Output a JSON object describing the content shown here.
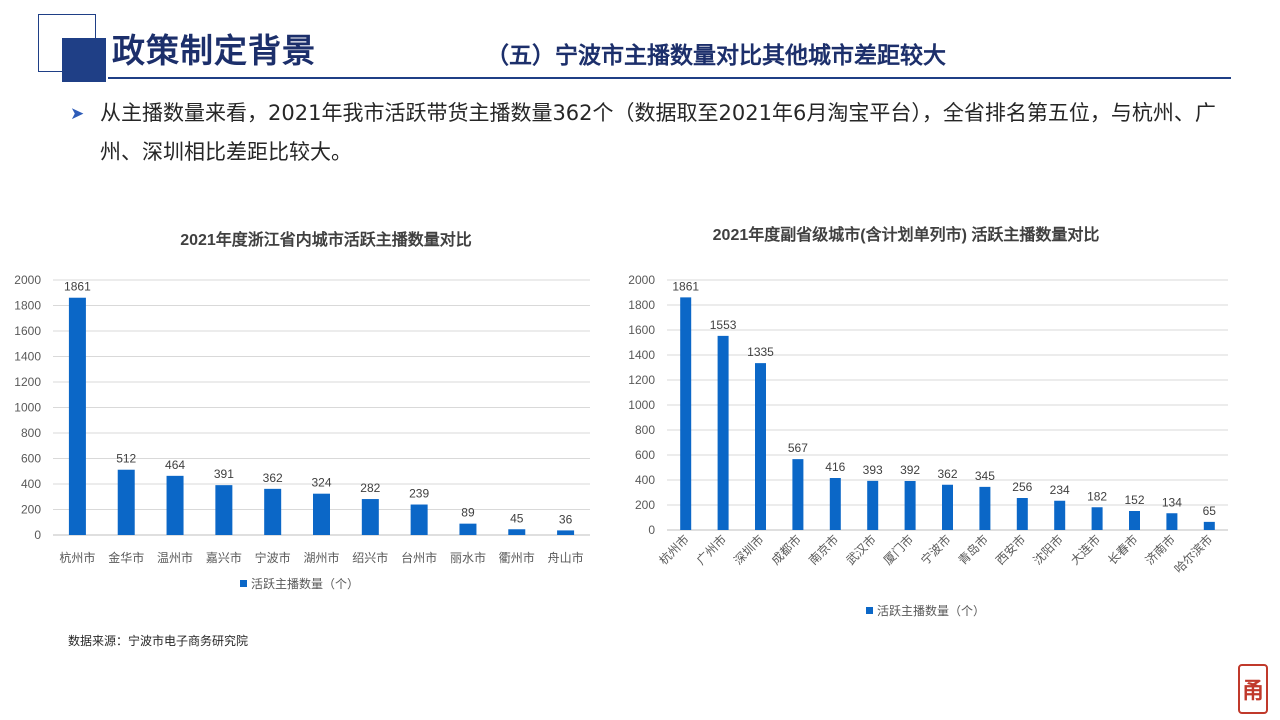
{
  "slide": {
    "title": "政策制定背景",
    "subtitle": "（五）宁波市主播数量对比其他城市差距较大",
    "bullet_icon": "triangle-arrow-icon",
    "bullet_text": "从主播数量来看，2021年我市活跃带货主播数量362个（数据取至2021年6月淘宝平台），全省排名第五位，与杭州、广州、深圳相比差距比较大。",
    "source": "数据来源：宁波市电子商务研究院",
    "seal_text": "甬",
    "colors": {
      "bar": "#0b67c7",
      "title": "#1c2f6b",
      "accent": "#1f3f86",
      "seal": "#c0392b"
    }
  },
  "chart_data": [
    {
      "type": "bar",
      "title": "2021年度浙江省内城市活跃主播数量对比",
      "categories": [
        "杭州市",
        "金华市",
        "温州市",
        "嘉兴市",
        "宁波市",
        "湖州市",
        "绍兴市",
        "台州市",
        "丽水市",
        "衢州市",
        "舟山市"
      ],
      "series": [
        {
          "name": "活跃主播数量（个）",
          "values": [
            1861,
            512,
            464,
            391,
            362,
            324,
            282,
            239,
            89,
            45,
            36
          ]
        }
      ],
      "ylim": [
        0,
        2000
      ],
      "yticks": [
        0,
        200,
        400,
        600,
        800,
        1000,
        1200,
        1400,
        1600,
        1800,
        2000
      ],
      "grid": true,
      "legend": "bottom",
      "xlabel": "",
      "ylabel": ""
    },
    {
      "type": "bar",
      "title": "2021年度副省级城市(含计划单列市) 活跃主播数量对比",
      "categories": [
        "杭州市",
        "广州市",
        "深圳市",
        "成都市",
        "南京市",
        "武汉市",
        "厦门市",
        "宁波市",
        "青岛市",
        "西安市",
        "沈阳市",
        "大连市",
        "长春市",
        "济南市",
        "哈尔滨市"
      ],
      "series": [
        {
          "name": "活跃主播数量（个）",
          "values": [
            1861,
            1553,
            1335,
            567,
            416,
            393,
            392,
            362,
            345,
            256,
            234,
            182,
            152,
            134,
            65
          ]
        }
      ],
      "ylim": [
        0,
        2000
      ],
      "yticks": [
        0,
        200,
        400,
        600,
        800,
        1000,
        1200,
        1400,
        1600,
        1800,
        2000
      ],
      "grid": true,
      "legend": "bottom",
      "xlabel": "",
      "ylabel": ""
    }
  ]
}
